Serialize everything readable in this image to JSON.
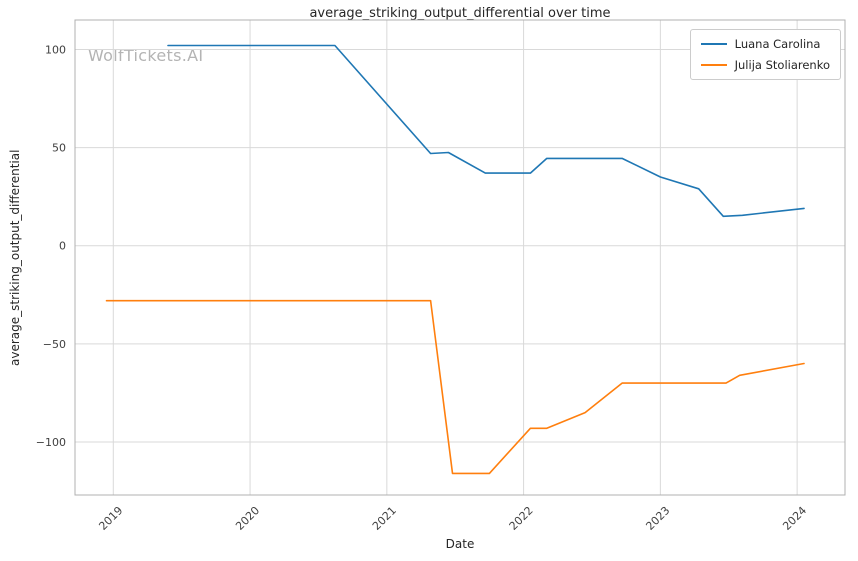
{
  "watermark": "WolfTickets.AI",
  "chart_data": {
    "type": "line",
    "title": "average_striking_output_differential over time",
    "xlabel": "Date",
    "ylabel": "average_striking_output_differential",
    "xlim": [
      2018.72,
      2024.35
    ],
    "ylim": [
      -127,
      115
    ],
    "xticks": [
      2019,
      2020,
      2021,
      2022,
      2023,
      2024
    ],
    "yticks": [
      -100,
      -50,
      0,
      50,
      100
    ],
    "grid": true,
    "legend_position": "upper right",
    "series": [
      {
        "name": "Luana Carolina",
        "color": "#1f77b4",
        "points": [
          [
            2019.4,
            102
          ],
          [
            2020.62,
            102
          ],
          [
            2021.32,
            47
          ],
          [
            2021.45,
            47.5
          ],
          [
            2021.72,
            37
          ],
          [
            2022.05,
            37
          ],
          [
            2022.17,
            44.5
          ],
          [
            2022.72,
            44.5
          ],
          [
            2023.0,
            35
          ],
          [
            2023.28,
            29
          ],
          [
            2023.46,
            15
          ],
          [
            2023.6,
            15.5
          ],
          [
            2024.05,
            19
          ]
        ]
      },
      {
        "name": "Julija Stoliarenko",
        "color": "#ff7f0e",
        "points": [
          [
            2018.95,
            -28
          ],
          [
            2021.32,
            -28
          ],
          [
            2021.48,
            -116
          ],
          [
            2021.75,
            -116
          ],
          [
            2022.05,
            -93
          ],
          [
            2022.17,
            -93
          ],
          [
            2022.45,
            -85
          ],
          [
            2022.72,
            -70
          ],
          [
            2023.48,
            -70
          ],
          [
            2023.58,
            -66
          ],
          [
            2024.05,
            -60
          ]
        ]
      }
    ]
  }
}
